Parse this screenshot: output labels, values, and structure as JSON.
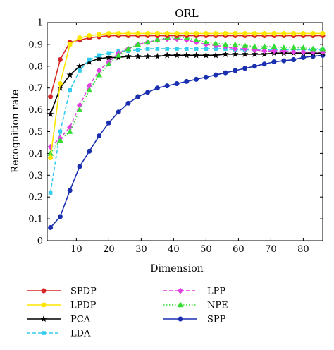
{
  "chart_data": {
    "type": "line",
    "title": "ORL",
    "xlabel": "Dimension",
    "ylabel": "Recognition rate",
    "xlim": [
      1,
      86
    ],
    "ylim": [
      0,
      1
    ],
    "xticks": [
      10,
      20,
      30,
      40,
      50,
      60,
      70,
      80
    ],
    "yticks": [
      0,
      0.1,
      0.2,
      0.3,
      0.4,
      0.5,
      0.6,
      0.7,
      0.8,
      0.9,
      1
    ],
    "grid": false,
    "legend_position": "below",
    "x": [
      2,
      5,
      8,
      11,
      14,
      17,
      20,
      23,
      26,
      29,
      32,
      35,
      38,
      41,
      44,
      47,
      50,
      53,
      56,
      59,
      62,
      65,
      68,
      71,
      74,
      77,
      80,
      83,
      86
    ],
    "series": [
      {
        "name": "SPDP",
        "color": "#d62728",
        "marker": "circle",
        "dash": "solid",
        "values": [
          0.66,
          0.83,
          0.91,
          0.92,
          0.93,
          0.935,
          0.94,
          0.94,
          0.94,
          0.94,
          0.94,
          0.94,
          0.94,
          0.94,
          0.94,
          0.94,
          0.94,
          0.94,
          0.94,
          0.94,
          0.94,
          0.94,
          0.94,
          0.94,
          0.94,
          0.94,
          0.94,
          0.94,
          0.94
        ]
      },
      {
        "name": "LPDP",
        "color": "#ffe600",
        "marker": "circle",
        "dash": "solid",
        "values": [
          0.38,
          0.72,
          0.9,
          0.93,
          0.94,
          0.945,
          0.95,
          0.95,
          0.95,
          0.95,
          0.95,
          0.95,
          0.95,
          0.95,
          0.95,
          0.95,
          0.95,
          0.95,
          0.95,
          0.95,
          0.95,
          0.95,
          0.95,
          0.95,
          0.95,
          0.95,
          0.95,
          0.95,
          0.95
        ]
      },
      {
        "name": "PCA",
        "color": "#000000",
        "marker": "star",
        "dash": "solid",
        "values": [
          0.58,
          0.7,
          0.76,
          0.8,
          0.82,
          0.835,
          0.84,
          0.84,
          0.845,
          0.845,
          0.845,
          0.845,
          0.85,
          0.85,
          0.85,
          0.85,
          0.85,
          0.85,
          0.855,
          0.855,
          0.855,
          0.855,
          0.855,
          0.86,
          0.86,
          0.86,
          0.86,
          0.86,
          0.86
        ]
      },
      {
        "name": "LDA",
        "color": "#33ccee",
        "marker": "square",
        "dash": "dashed",
        "values": [
          0.22,
          0.5,
          0.69,
          0.78,
          0.83,
          0.85,
          0.86,
          0.87,
          0.87,
          0.875,
          0.88,
          0.88,
          0.88,
          0.88,
          0.88,
          0.88,
          0.88,
          0.88,
          0.88,
          0.875,
          0.875,
          0.875,
          0.875,
          0.875,
          0.875,
          0.875,
          0.875,
          0.875,
          0.875
        ]
      },
      {
        "name": "LPP",
        "color": "#e040e0",
        "marker": "diamond",
        "dash": "dashed",
        "values": [
          0.43,
          0.47,
          0.52,
          0.62,
          0.71,
          0.78,
          0.82,
          0.86,
          0.88,
          0.9,
          0.91,
          0.92,
          0.925,
          0.925,
          0.92,
          0.91,
          0.9,
          0.895,
          0.89,
          0.88,
          0.88,
          0.875,
          0.87,
          0.87,
          0.87,
          0.865,
          0.865,
          0.865,
          0.865
        ]
      },
      {
        "name": "NPE",
        "color": "#33dd33",
        "marker": "triangle",
        "dash": "dotted",
        "values": [
          0.4,
          0.46,
          0.5,
          0.6,
          0.69,
          0.76,
          0.81,
          0.85,
          0.88,
          0.9,
          0.91,
          0.92,
          0.93,
          0.935,
          0.93,
          0.92,
          0.91,
          0.905,
          0.9,
          0.9,
          0.895,
          0.89,
          0.89,
          0.89,
          0.885,
          0.885,
          0.885,
          0.88,
          0.88
        ]
      },
      {
        "name": "SPP",
        "color": "#1a2fb0",
        "marker": "circle",
        "dash": "solid",
        "values": [
          0.06,
          0.11,
          0.23,
          0.34,
          0.41,
          0.48,
          0.54,
          0.59,
          0.63,
          0.66,
          0.68,
          0.7,
          0.71,
          0.72,
          0.73,
          0.74,
          0.75,
          0.76,
          0.77,
          0.78,
          0.79,
          0.8,
          0.81,
          0.82,
          0.825,
          0.83,
          0.84,
          0.845,
          0.85
        ]
      }
    ]
  }
}
